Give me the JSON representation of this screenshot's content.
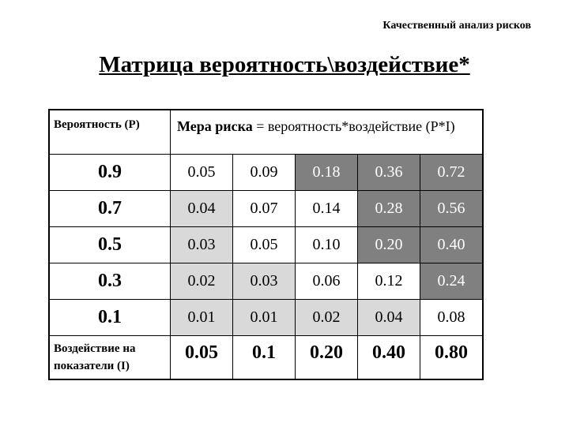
{
  "subtitle": "Качественный анализ рисков",
  "title": "Матрица вероятность\\воздействие*",
  "table": {
    "prob_header": "Вероятность (P)",
    "risk_header_bold": "Мера риска",
    "risk_header_rest": " = вероятность*воздействие (P*I)",
    "rows": [
      {
        "p": "0.9",
        "cells": [
          "0.05",
          "0.09",
          "0.18",
          "0.36",
          "0.72"
        ],
        "shade": [
          "w",
          "w",
          "d",
          "d",
          "d"
        ]
      },
      {
        "p": "0.7",
        "cells": [
          "0.04",
          "0.07",
          "0.14",
          "0.28",
          "0.56"
        ],
        "shade": [
          "l",
          "w",
          "w",
          "d",
          "d"
        ]
      },
      {
        "p": "0.5",
        "cells": [
          "0.03",
          "0.05",
          "0.10",
          "0.20",
          "0.40"
        ],
        "shade": [
          "l",
          "w",
          "w",
          "d",
          "d"
        ]
      },
      {
        "p": "0.3",
        "cells": [
          "0.02",
          "0.03",
          "0.06",
          "0.12",
          "0.24"
        ],
        "shade": [
          "l",
          "l",
          "w",
          "w",
          "d"
        ]
      },
      {
        "p": "0.1",
        "cells": [
          "0.01",
          "0.01",
          "0.02",
          "0.04",
          "0.08"
        ],
        "shade": [
          "l",
          "l",
          "l",
          "l",
          "w"
        ]
      }
    ],
    "impact_label": "Воздействие на показатели (I)",
    "impacts": [
      "0.05",
      "0.1",
      "0.20",
      "0.40",
      "0.80"
    ]
  },
  "colors": {
    "high": "#808080",
    "low": "#d9d9d9",
    "medium": "#ffffff"
  }
}
